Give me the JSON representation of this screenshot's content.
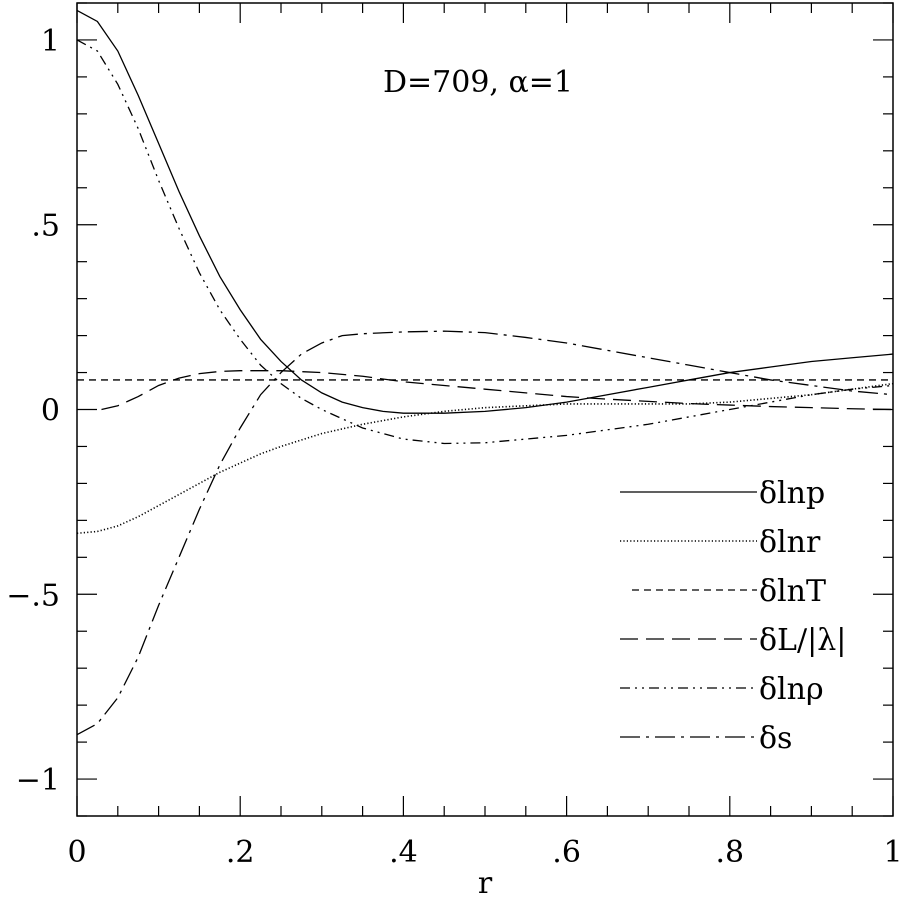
{
  "chart_data": {
    "type": "line",
    "title": "",
    "xlabel": "r",
    "ylabel": "",
    "annotation": "D=709,  α=1",
    "xlim": [
      0,
      1
    ],
    "ylim": [
      -1.1,
      1.1
    ],
    "x_ticks": [
      0,
      0.2,
      0.4,
      0.6,
      0.8,
      1
    ],
    "x_tick_labels": [
      "0",
      ".2",
      ".4",
      ".6",
      ".8",
      "1"
    ],
    "y_ticks": [
      -1,
      -0.5,
      0,
      0.5,
      1
    ],
    "y_tick_labels": [
      "−1",
      "−.5",
      "0",
      ".5",
      "1"
    ],
    "grid": false,
    "legend_position": "lower-right",
    "series": [
      {
        "name": "δlnp",
        "dash": "solid",
        "x": [
          0,
          0.025,
          0.05,
          0.075,
          0.1,
          0.125,
          0.15,
          0.175,
          0.2,
          0.225,
          0.25,
          0.275,
          0.3,
          0.325,
          0.35,
          0.375,
          0.4,
          0.45,
          0.5,
          0.55,
          0.6,
          0.65,
          0.7,
          0.75,
          0.8,
          0.85,
          0.9,
          0.95,
          1.0
        ],
        "y": [
          1.08,
          1.05,
          0.97,
          0.85,
          0.72,
          0.59,
          0.47,
          0.36,
          0.27,
          0.19,
          0.13,
          0.08,
          0.045,
          0.02,
          0.005,
          -0.005,
          -0.01,
          -0.01,
          -0.005,
          0.005,
          0.02,
          0.04,
          0.06,
          0.08,
          0.1,
          0.115,
          0.13,
          0.14,
          0.15
        ]
      },
      {
        "name": "δlnr",
        "dash": "dotted",
        "x": [
          0,
          0.025,
          0.05,
          0.075,
          0.1,
          0.125,
          0.15,
          0.175,
          0.2,
          0.225,
          0.25,
          0.3,
          0.35,
          0.4,
          0.45,
          0.5,
          0.55,
          0.6,
          0.65,
          0.7,
          0.75,
          0.8,
          0.85,
          0.9,
          0.95,
          1.0
        ],
        "y": [
          -0.335,
          -0.33,
          -0.315,
          -0.29,
          -0.26,
          -0.23,
          -0.2,
          -0.17,
          -0.145,
          -0.12,
          -0.1,
          -0.065,
          -0.04,
          -0.02,
          -0.005,
          0.005,
          0.01,
          0.015,
          0.015,
          0.015,
          0.015,
          0.02,
          0.03,
          0.04,
          0.055,
          0.07
        ]
      },
      {
        "name": "δlnT",
        "dash": "shortdash",
        "x": [
          0,
          1
        ],
        "y": [
          0.08,
          0.08
        ]
      },
      {
        "name": "δL/|λ|",
        "dash": "longdash",
        "x": [
          0.03,
          0.05,
          0.075,
          0.1,
          0.125,
          0.15,
          0.175,
          0.2,
          0.25,
          0.3,
          0.35,
          0.4,
          0.45,
          0.5,
          0.55,
          0.6,
          0.65,
          0.7,
          0.75,
          0.8,
          0.85,
          0.9,
          0.95,
          1.0
        ],
        "y": [
          0.0,
          0.01,
          0.035,
          0.065,
          0.085,
          0.097,
          0.103,
          0.105,
          0.105,
          0.1,
          0.09,
          0.075,
          0.065,
          0.055,
          0.045,
          0.035,
          0.028,
          0.022,
          0.016,
          0.012,
          0.008,
          0.005,
          0.002,
          0.0
        ]
      },
      {
        "name": "δlnρ",
        "dash": "dashdotdot",
        "x": [
          0,
          0.025,
          0.05,
          0.075,
          0.1,
          0.125,
          0.15,
          0.175,
          0.2,
          0.225,
          0.25,
          0.275,
          0.3,
          0.35,
          0.4,
          0.45,
          0.5,
          0.55,
          0.6,
          0.65,
          0.7,
          0.75,
          0.8,
          0.85,
          0.9,
          0.95,
          1.0
        ],
        "y": [
          1.0,
          0.97,
          0.88,
          0.76,
          0.62,
          0.49,
          0.37,
          0.27,
          0.19,
          0.12,
          0.07,
          0.03,
          0.0,
          -0.05,
          -0.08,
          -0.092,
          -0.09,
          -0.08,
          -0.07,
          -0.055,
          -0.04,
          -0.02,
          0.0,
          0.02,
          0.04,
          0.055,
          0.065
        ]
      },
      {
        "name": "δs",
        "dash": "dashdot",
        "x": [
          0,
          0.025,
          0.05,
          0.075,
          0.1,
          0.125,
          0.15,
          0.175,
          0.2,
          0.225,
          0.25,
          0.275,
          0.3,
          0.325,
          0.35,
          0.4,
          0.45,
          0.5,
          0.55,
          0.6,
          0.65,
          0.7,
          0.75,
          0.8,
          0.85,
          0.9,
          0.95,
          1.0
        ],
        "y": [
          -0.88,
          -0.85,
          -0.78,
          -0.67,
          -0.53,
          -0.4,
          -0.27,
          -0.15,
          -0.05,
          0.04,
          0.1,
          0.15,
          0.18,
          0.2,
          0.205,
          0.21,
          0.212,
          0.208,
          0.195,
          0.18,
          0.16,
          0.14,
          0.12,
          0.1,
          0.08,
          0.065,
          0.05,
          0.04
        ]
      }
    ]
  }
}
